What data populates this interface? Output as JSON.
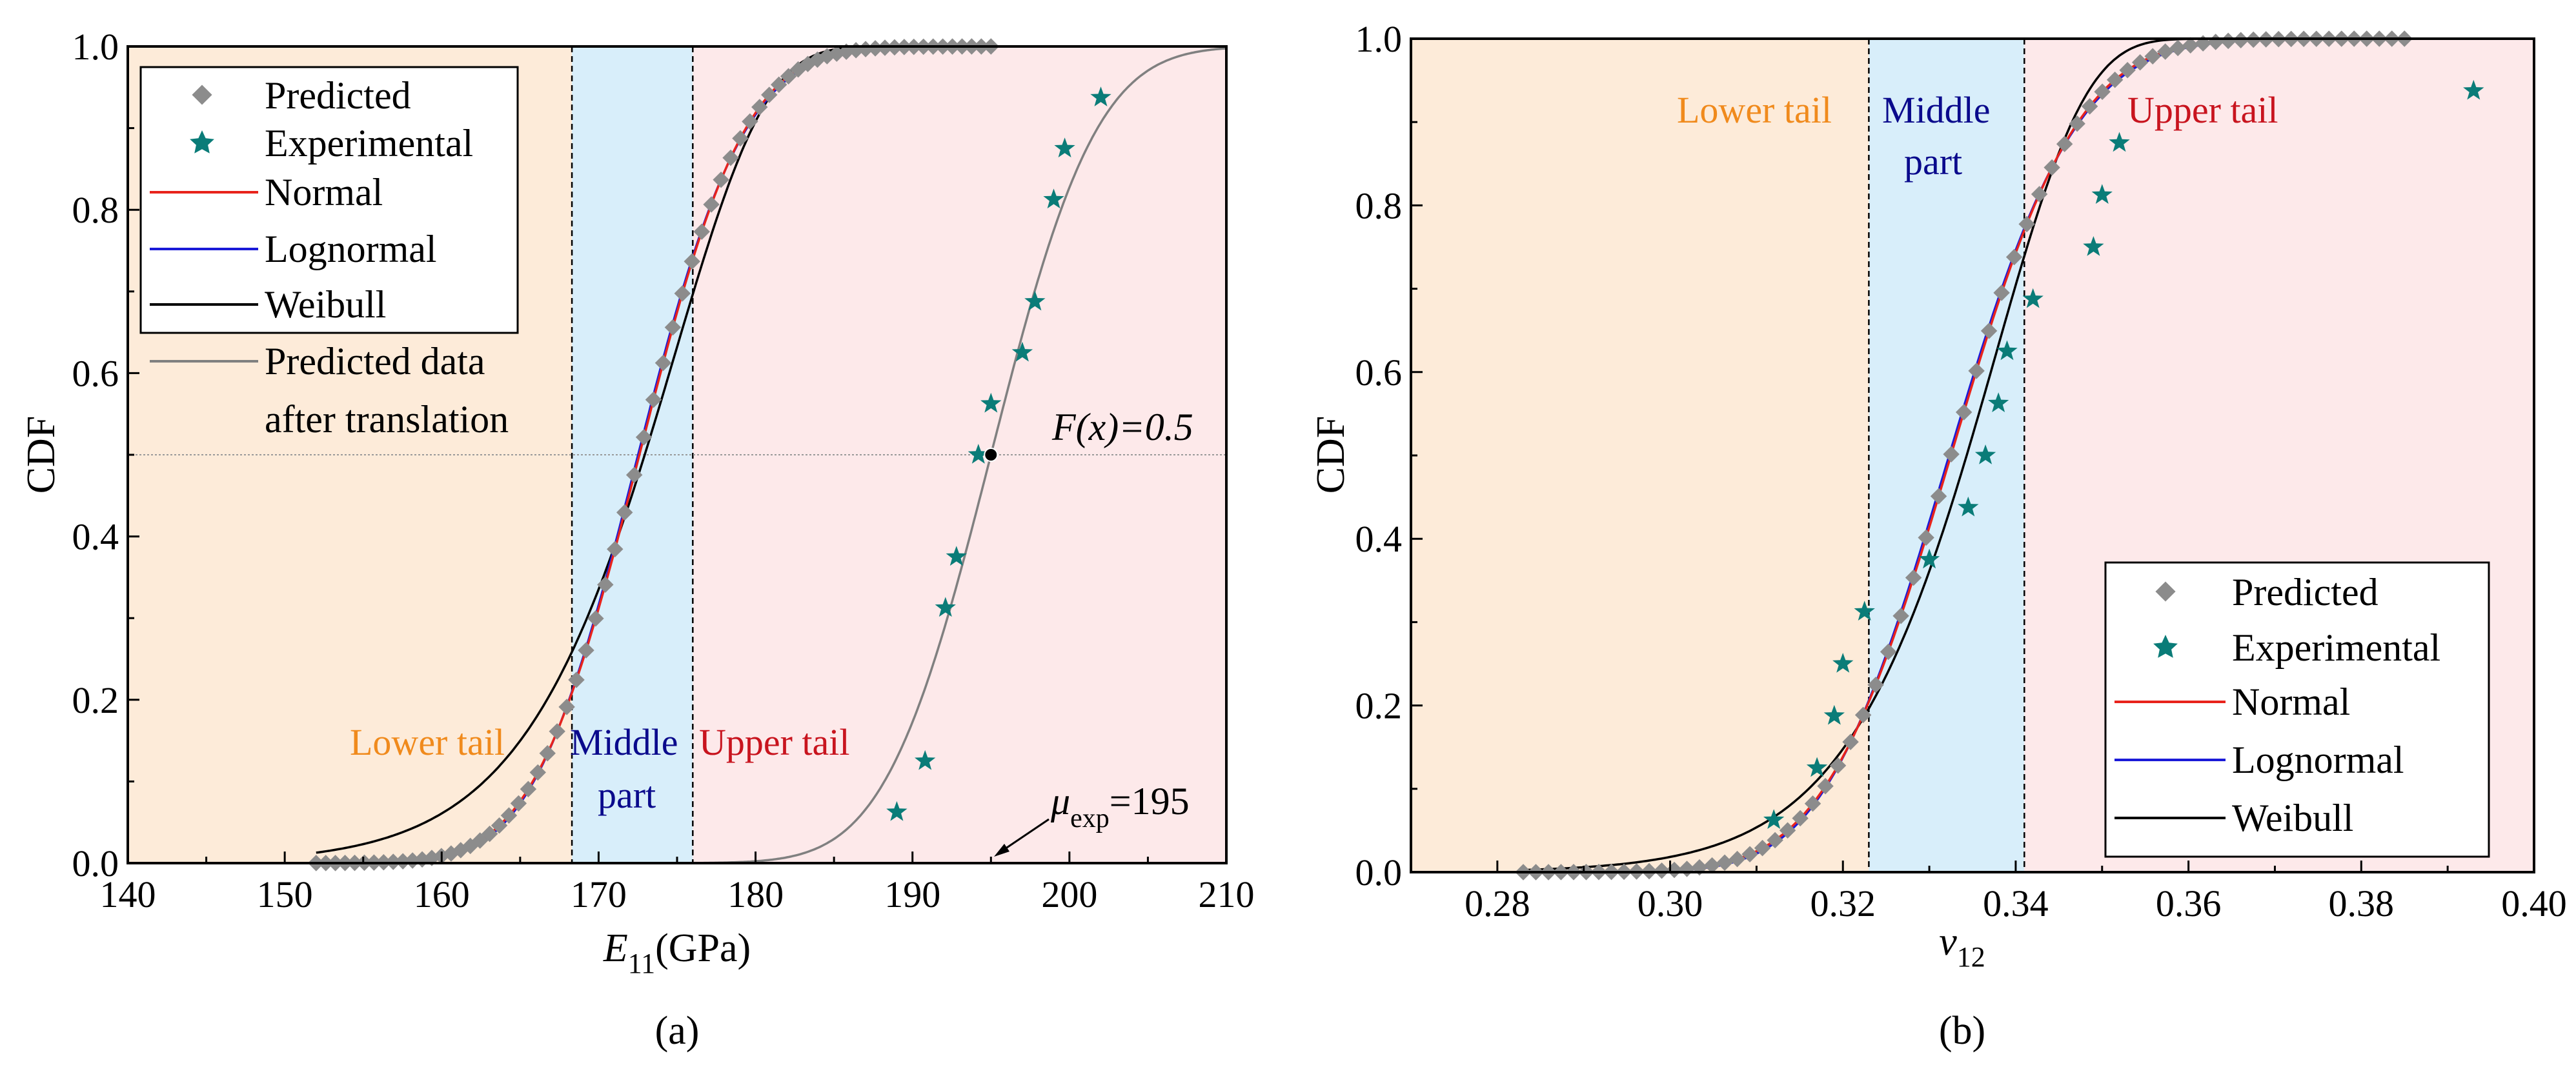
{
  "colors": {
    "lower_region": "#fdebd9",
    "middle_region": "#d8eefa",
    "upper_region": "#fde9ea",
    "lower_label": "#f08a1c",
    "middle_label": "#0a0a8c",
    "upper_label": "#c8141e",
    "predicted": "#8c8c8c",
    "experimental": "#0a7c78",
    "normal": "#e8231c",
    "lognormal": "#1a1ad8",
    "weibull": "#000000",
    "translated": "#808080"
  },
  "chart_data": [
    {
      "id": "a",
      "type": "line",
      "panel_label": "(a)",
      "xlabel": "E11(GPa)",
      "xlabel_parts": {
        "main": "E",
        "sub": "11",
        "rest": "(GPa)"
      },
      "ylabel": "CDF",
      "xlim": [
        140,
        210
      ],
      "ylim": [
        0,
        1.0
      ],
      "xticks": [
        140,
        150,
        160,
        170,
        180,
        190,
        200,
        210
      ],
      "xtick_labels": [
        "140",
        "150",
        "160",
        "170",
        "180",
        "190",
        "200",
        "210"
      ],
      "yticks": [
        0,
        0.2,
        0.4,
        0.6,
        0.8,
        1.0
      ],
      "ytick_labels": [
        "0.0",
        "0.2",
        "0.4",
        "0.6",
        "0.8",
        "1.0"
      ],
      "regions": [
        {
          "name": "Lower tail",
          "from": 140,
          "to": 168.3
        },
        {
          "name": "Middle part",
          "from": 168.3,
          "to": 176.0
        },
        {
          "name": "Upper tail",
          "from": 176.0,
          "to": 210
        }
      ],
      "region_labels": {
        "lower": "Lower tail",
        "middle_1": "Middle",
        "middle_2": "part",
        "upper": "Upper tail"
      },
      "boundaries": [
        168.3,
        176.0
      ],
      "distribution": {
        "mean": 172.6,
        "sd": 5.3,
        "weibull_k": 30.9,
        "weibull_lambda": 175.0,
        "x_range": [
          152,
          195
        ]
      },
      "predicted_range": [
        152,
        195
      ],
      "translated": {
        "mean": 195.0,
        "sd": 5.3,
        "x_range": [
          175,
          210
        ]
      },
      "experimental": [
        {
          "x": 189.0,
          "y": 0.0625
        },
        {
          "x": 190.8,
          "y": 0.125
        },
        {
          "x": 192.1,
          "y": 0.3125
        },
        {
          "x": 192.8,
          "y": 0.375
        },
        {
          "x": 194.2,
          "y": 0.5
        },
        {
          "x": 195.0,
          "y": 0.5625
        },
        {
          "x": 197.0,
          "y": 0.625
        },
        {
          "x": 197.8,
          "y": 0.6875
        },
        {
          "x": 199.0,
          "y": 0.8125
        },
        {
          "x": 199.7,
          "y": 0.875
        },
        {
          "x": 202.0,
          "y": 0.9375
        }
      ],
      "hline": {
        "y": 0.5,
        "label": "F(x)=0.5"
      },
      "mean_marker": {
        "x": 195,
        "y": 0.5
      },
      "mu_annotation": {
        "symbol": "μ",
        "sub": "exp",
        "value": "=195"
      },
      "legend": [
        "Predicted",
        "Experimental",
        "Normal",
        "Lognormal",
        "Weibull",
        "Predicted data",
        "after translation"
      ]
    },
    {
      "id": "b",
      "type": "line",
      "panel_label": "(b)",
      "xlabel": "v12",
      "xlabel_parts": {
        "main": "v",
        "sub": "12",
        "rest": ""
      },
      "ylabel": "CDF",
      "xlim": [
        0.27,
        0.4
      ],
      "ylim": [
        0,
        1.0
      ],
      "xticks": [
        0.28,
        0.3,
        0.32,
        0.34,
        0.36,
        0.38,
        0.4
      ],
      "xtick_labels": [
        "0.28",
        "0.30",
        "0.32",
        "0.34",
        "0.36",
        "0.38",
        "0.40"
      ],
      "yticks": [
        0,
        0.2,
        0.4,
        0.6,
        0.8,
        1.0
      ],
      "ytick_labels": [
        "0.0",
        "0.2",
        "0.4",
        "0.6",
        "0.8",
        "1.0"
      ],
      "regions": [
        {
          "name": "Lower tail",
          "from": 0.27,
          "to": 0.323
        },
        {
          "name": "Middle part",
          "from": 0.323,
          "to": 0.341
        },
        {
          "name": "Upper tail",
          "from": 0.341,
          "to": 0.4
        }
      ],
      "region_labels": {
        "lower": "Lower tail",
        "middle_1": "Middle",
        "middle_2": "part",
        "upper": "Upper tail"
      },
      "boundaries": [
        0.323,
        0.341
      ],
      "distribution": {
        "mean": 0.3325,
        "sd": 0.0115,
        "weibull_k": 33.5,
        "weibull_lambda": 0.338,
        "x_range": [
          0.283,
          0.385
        ]
      },
      "predicted_range": [
        0.283,
        0.385
      ],
      "experimental": [
        {
          "x": 0.312,
          "y": 0.0625
        },
        {
          "x": 0.317,
          "y": 0.125
        },
        {
          "x": 0.319,
          "y": 0.1875
        },
        {
          "x": 0.32,
          "y": 0.25
        },
        {
          "x": 0.3225,
          "y": 0.3125
        },
        {
          "x": 0.33,
          "y": 0.375
        },
        {
          "x": 0.3345,
          "y": 0.4375
        },
        {
          "x": 0.3365,
          "y": 0.5
        },
        {
          "x": 0.338,
          "y": 0.5625
        },
        {
          "x": 0.339,
          "y": 0.625
        },
        {
          "x": 0.342,
          "y": 0.6875
        },
        {
          "x": 0.349,
          "y": 0.75
        },
        {
          "x": 0.35,
          "y": 0.8125
        },
        {
          "x": 0.352,
          "y": 0.875
        },
        {
          "x": 0.393,
          "y": 0.9375
        }
      ],
      "legend": [
        "Predicted",
        "Experimental",
        "Normal",
        "Lognormal",
        "Weibull"
      ]
    }
  ]
}
